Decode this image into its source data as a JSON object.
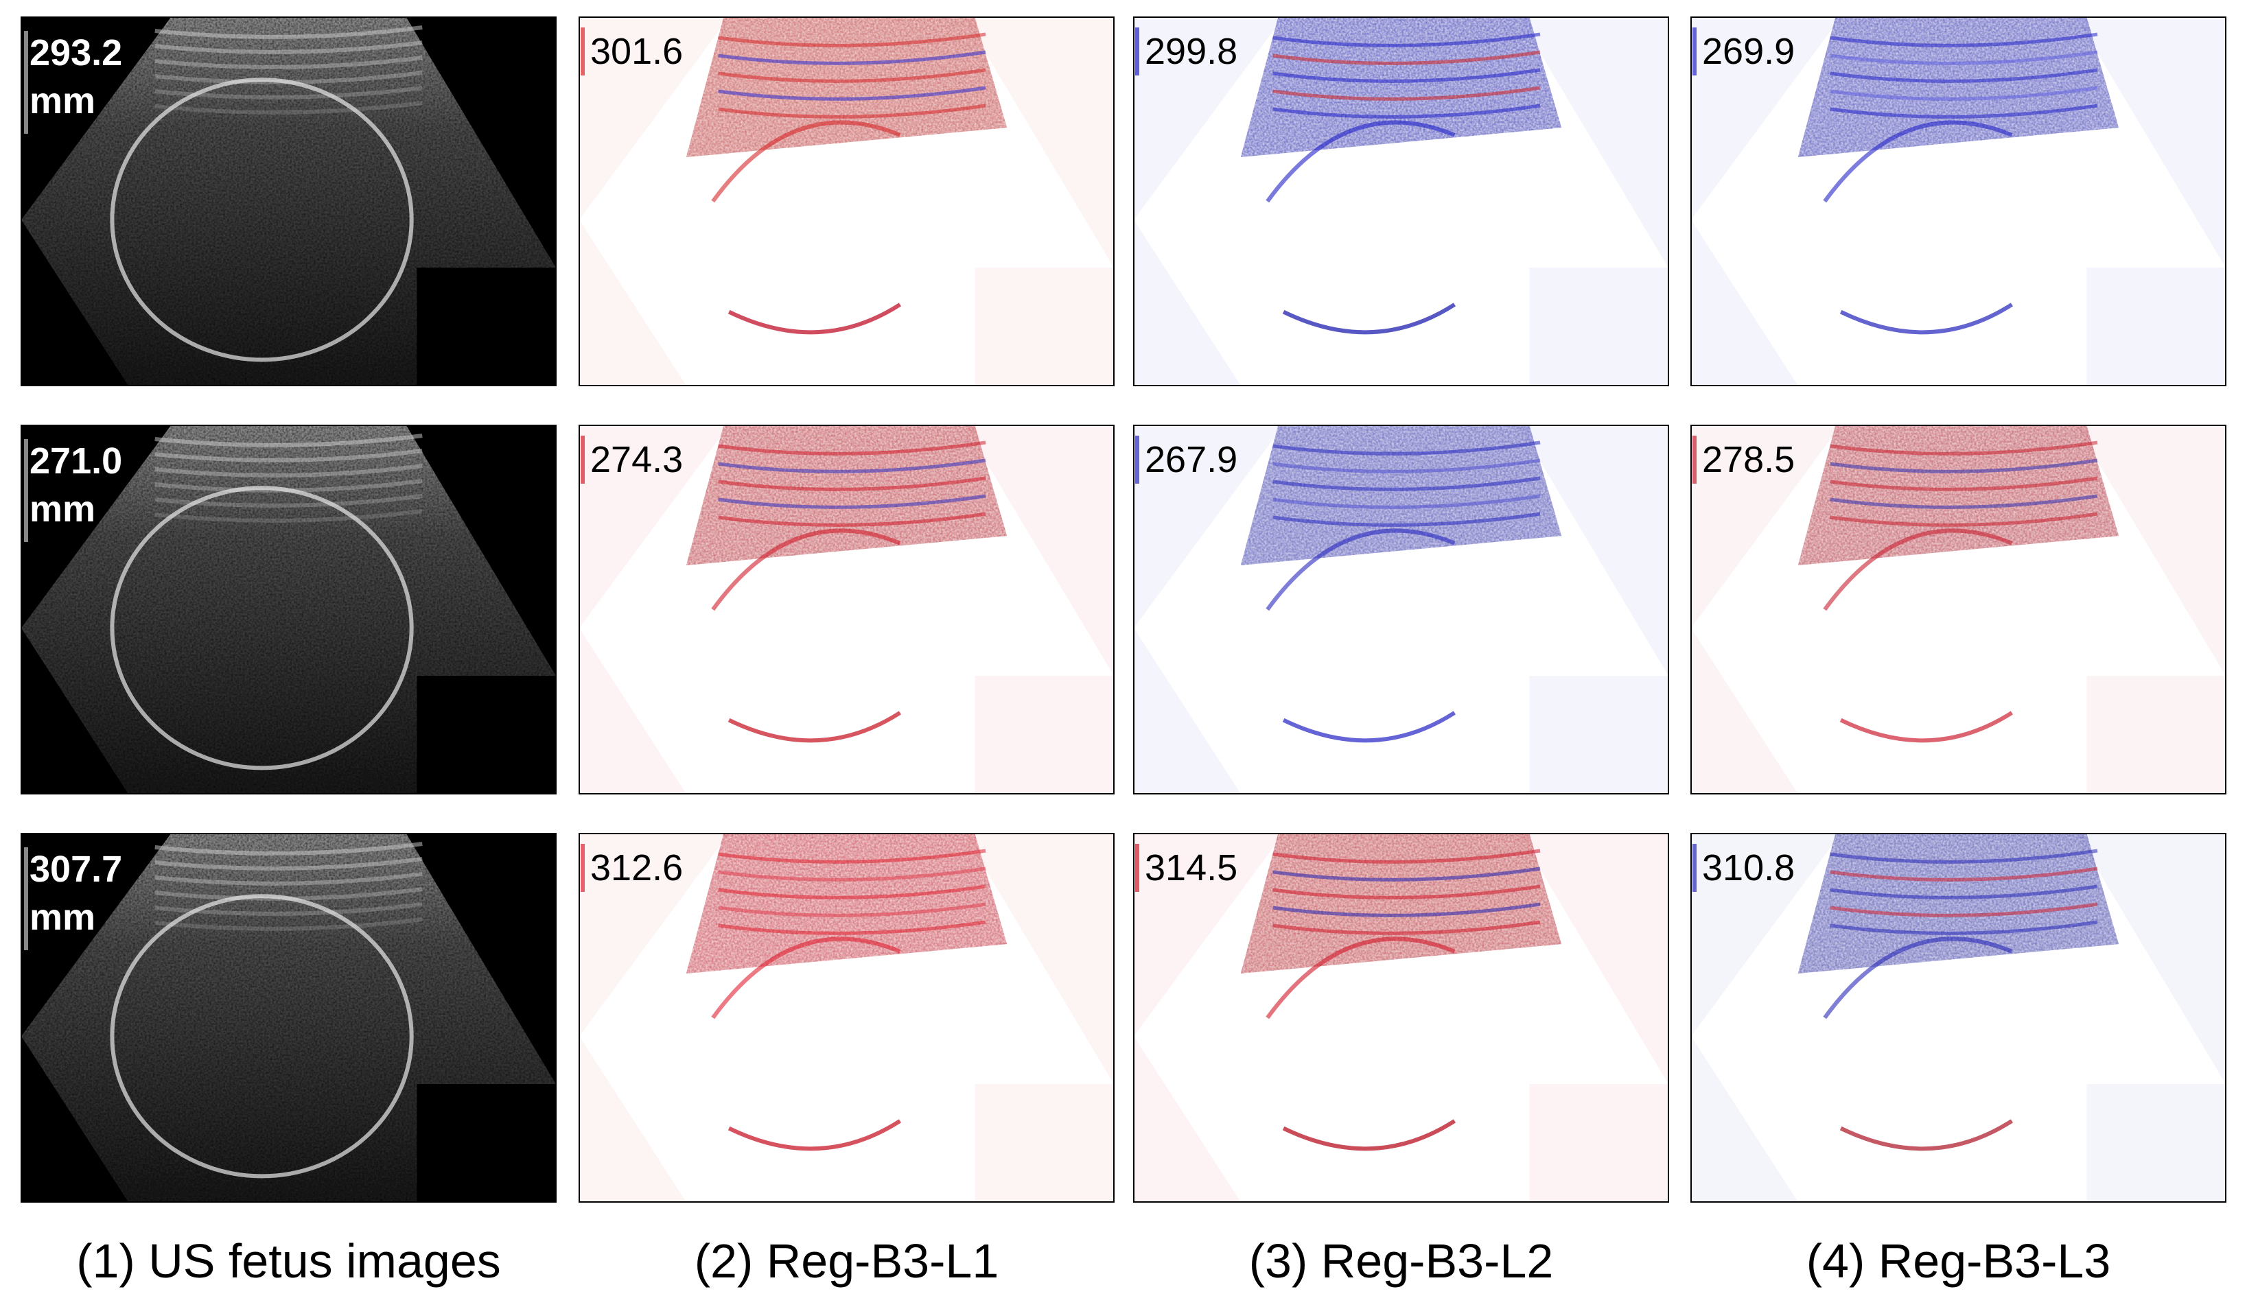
{
  "rows": [
    {
      "values": [
        "293.2",
        "301.6",
        "299.8",
        "269.9"
      ]
    },
    {
      "values": [
        "271.0",
        "274.3",
        "267.9",
        "278.5"
      ]
    },
    {
      "values": [
        "307.7",
        "312.6",
        "314.5",
        "310.8"
      ]
    }
  ],
  "unit": "mm",
  "captions": [
    "(1) US fetus images",
    "(2) Reg-B3-L1",
    "(3) Reg-B3-L2",
    "(4) Reg-B3-L3"
  ]
}
